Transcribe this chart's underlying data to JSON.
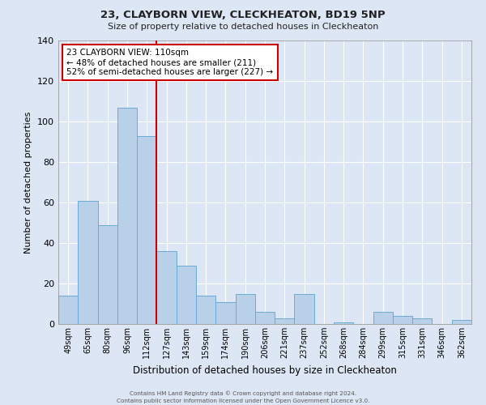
{
  "title": "23, CLAYBORN VIEW, CLECKHEATON, BD19 5NP",
  "subtitle": "Size of property relative to detached houses in Cleckheaton",
  "xlabel": "Distribution of detached houses by size in Cleckheaton",
  "ylabel": "Number of detached properties",
  "categories": [
    "49sqm",
    "65sqm",
    "80sqm",
    "96sqm",
    "112sqm",
    "127sqm",
    "143sqm",
    "159sqm",
    "174sqm",
    "190sqm",
    "206sqm",
    "221sqm",
    "237sqm",
    "252sqm",
    "268sqm",
    "284sqm",
    "299sqm",
    "315sqm",
    "331sqm",
    "346sqm",
    "362sqm"
  ],
  "values": [
    14,
    61,
    49,
    107,
    93,
    36,
    29,
    14,
    11,
    15,
    6,
    3,
    15,
    0,
    1,
    0,
    6,
    4,
    3,
    0,
    2
  ],
  "bar_color": "#b8d0e8",
  "bar_edge_color": "#6aaad4",
  "bg_color": "#dce6f5",
  "grid_color": "#ffffff",
  "vline_color": "#cc0000",
  "annotation_title": "23 CLAYBORN VIEW: 110sqm",
  "annotation_line2": "← 48% of detached houses are smaller (211)",
  "annotation_line3": "52% of semi-detached houses are larger (227) →",
  "annotation_box_color": "#cc0000",
  "ylim": [
    0,
    140
  ],
  "yticks": [
    0,
    20,
    40,
    60,
    80,
    100,
    120,
    140
  ],
  "footer1": "Contains HM Land Registry data © Crown copyright and database right 2024.",
  "footer2": "Contains public sector information licensed under the Open Government Licence v3.0."
}
